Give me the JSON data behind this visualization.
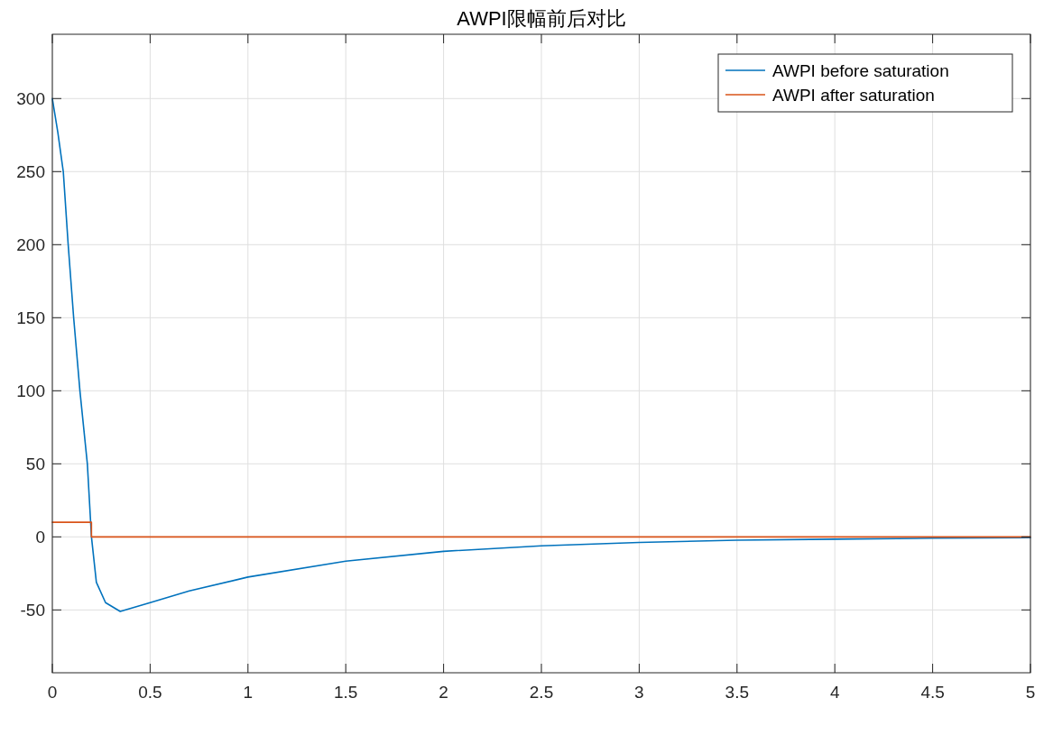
{
  "chart_data": {
    "type": "line",
    "title": "AWPI限幅前后对比",
    "xlim": [
      0,
      5
    ],
    "ylim": [
      -93,
      344
    ],
    "xticks": [
      0,
      {
        "value": 0.5,
        "label": "0.5"
      },
      1,
      {
        "value": 1.5,
        "label": "1.5"
      },
      2,
      {
        "value": 2.5,
        "label": "2.5"
      },
      3,
      {
        "value": 3.5,
        "label": "3.5"
      },
      4,
      {
        "value": 4.5,
        "label": "4.5"
      },
      5
    ],
    "yticks": [
      -50,
      0,
      50,
      100,
      150,
      200,
      250,
      300
    ],
    "grid": true,
    "legend": "top right",
    "line_style": "solid",
    "series": [
      {
        "name": "AWPI before saturation",
        "color": "#0072bd",
        "x": [
          0,
          0.028,
          0.056,
          0.081,
          0.109,
          0.141,
          0.179,
          0.2,
          0.225,
          0.272,
          0.347,
          0.5,
          0.7,
          1,
          1.5,
          2,
          2.5,
          3,
          3.5,
          4,
          4.5,
          5
        ],
        "values": [
          300,
          277,
          250,
          200,
          150,
          100,
          50,
          0,
          -31,
          -45,
          -51,
          -45,
          -37,
          -27.5,
          -16.6,
          -9.9,
          -6.1,
          -3.8,
          -2.3,
          -1.6,
          -0.9,
          -0.5
        ]
      },
      {
        "name": "AWPI after saturation",
        "color": "#d95319",
        "x": [
          0,
          0.2,
          0.2,
          5
        ],
        "values": [
          10,
          10,
          0,
          0
        ]
      }
    ]
  }
}
